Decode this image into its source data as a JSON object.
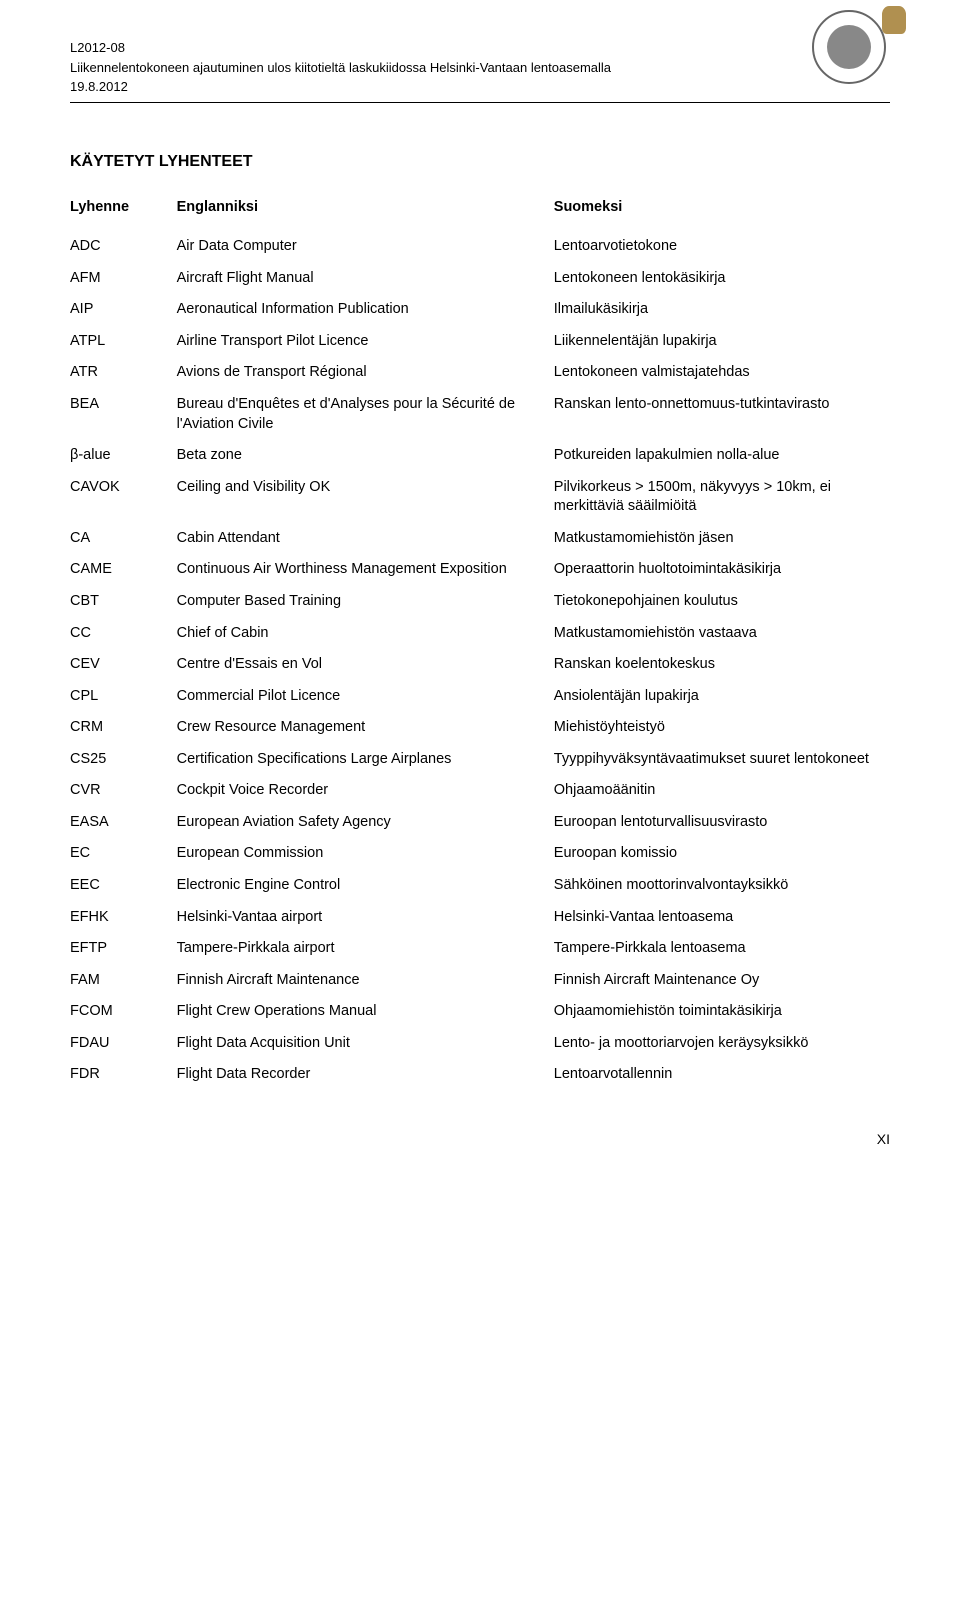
{
  "header": {
    "doc_id": "L2012-08",
    "subtitle": "Liikennelentokoneen ajautuminen ulos kiitotieltä laskukiidossa Helsinki-Vantaan lentoasemalla",
    "date": "19.8.2012"
  },
  "title": "KÄYTETYT LYHENTEET",
  "columns": {
    "abbrev": "Lyhenne",
    "english": "Englanniksi",
    "finnish": "Suomeksi"
  },
  "rows": [
    {
      "a": "ADC",
      "e": "Air Data Computer",
      "f": "Lentoarvotietokone"
    },
    {
      "a": "AFM",
      "e": "Aircraft Flight Manual",
      "f": "Lentokoneen lentokäsikirja"
    },
    {
      "a": "AIP",
      "e": "Aeronautical Information Publication",
      "f": "Ilmailukäsikirja"
    },
    {
      "a": "ATPL",
      "e": "Airline Transport Pilot Licence",
      "f": "Liikennelentäjän lupakirja"
    },
    {
      "a": "ATR",
      "e": "Avions de Transport Régional",
      "f": "Lentokoneen valmistajatehdas"
    },
    {
      "a": "BEA",
      "e": "Bureau d'Enquêtes et d'Analyses pour la Sécurité de l'Aviation Civile",
      "f": "Ranskan lento-onnettomuus-tutkintavirasto"
    },
    {
      "a": "β-alue",
      "e": "Beta zone",
      "f": "Potkureiden lapakulmien nolla-alue"
    },
    {
      "a": "CAVOK",
      "e": "Ceiling and Visibility OK",
      "f": "Pilvikorkeus > 1500m, näkyvyys > 10km, ei merkittäviä sääilmiöitä"
    },
    {
      "a": "CA",
      "e": "Cabin Attendant",
      "f": "Matkustamomiehistön jäsen"
    },
    {
      "a": "CAME",
      "e": "Continuous Air Worthiness Management Exposition",
      "f": "Operaattorin huoltotoimintakäsikirja"
    },
    {
      "a": "CBT",
      "e": "Computer Based Training",
      "f": "Tietokonepohjainen koulutus"
    },
    {
      "a": "CC",
      "e": "Chief of Cabin",
      "f": "Matkustamomiehistön vastaava"
    },
    {
      "a": "CEV",
      "e": "Centre d'Essais en Vol",
      "f": "Ranskan koelentokeskus"
    },
    {
      "a": "CPL",
      "e": "Commercial Pilot Licence",
      "f": "Ansiolentäjän lupakirja"
    },
    {
      "a": "CRM",
      "e": "Crew Resource Management",
      "f": "Miehistöyhteistyö"
    },
    {
      "a": "CS25",
      "e": "Certification Specifications  Large Airplanes",
      "f": "Tyyppihyväksyntävaatimukset suuret lentokoneet"
    },
    {
      "a": "CVR",
      "e": "Cockpit Voice Recorder",
      "f": "Ohjaamoäänitin"
    },
    {
      "a": "EASA",
      "e": "European Aviation Safety Agency",
      "f": "Euroopan lentoturvallisuusvirasto"
    },
    {
      "a": "EC",
      "e": "European Commission",
      "f": "Euroopan komissio"
    },
    {
      "a": "EEC",
      "e": "Electronic Engine Control",
      "f": "Sähköinen moottorinvalvontayksikkö"
    },
    {
      "a": "EFHK",
      "e": "Helsinki-Vantaa airport",
      "f": "Helsinki-Vantaa lentoasema"
    },
    {
      "a": "EFTP",
      "e": "Tampere-Pirkkala airport",
      "f": "Tampere-Pirkkala lentoasema"
    },
    {
      "a": "FAM",
      "e": "Finnish Aircraft Maintenance",
      "f": "Finnish Aircraft Maintenance Oy"
    },
    {
      "a": "FCOM",
      "e": "Flight Crew Operations Manual",
      "f": "Ohjaamomiehistön toimintakäsikirja"
    },
    {
      "a": "FDAU",
      "e": "Flight Data Acquisition Unit",
      "f": "Lento- ja moottoriarvojen keräysyksikkö"
    },
    {
      "a": "FDR",
      "e": "Flight Data Recorder",
      "f": "Lentoarvotallennin"
    }
  ],
  "page_number": "XI"
}
